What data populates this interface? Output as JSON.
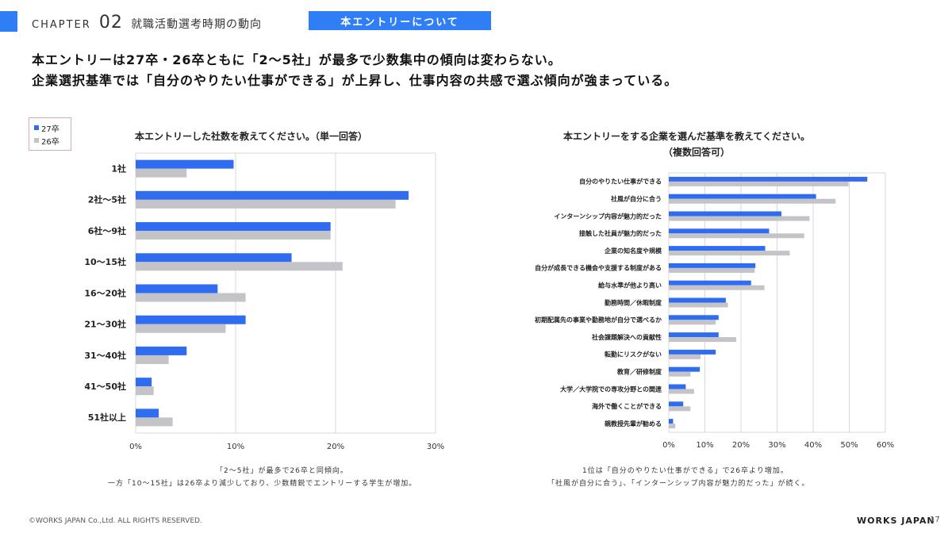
{
  "header": {
    "chapter_label": "CHAPTER",
    "chapter_num": "02",
    "chapter_title": "就職活動選考時期の動向",
    "tag": "本エントリーについて"
  },
  "headline": {
    "line1": "本エントリーは27卒・26卒ともに「2～5社」が最多で少数集中の傾向は変わらない。",
    "line2": "企業選択基準では「自分のやりたい仕事ができる」が上昇し、仕事内容の共感で選ぶ傾向が強まっている。"
  },
  "legend": {
    "items": [
      "27卒",
      "26卒"
    ]
  },
  "colors": {
    "series27": "#2f6cf0",
    "series26": "#c3c3c8",
    "accent": "#2f7ef5"
  },
  "chart_data": [
    {
      "type": "bar",
      "orientation": "horizontal",
      "title": "本エントリーした社数を教えてください。（単一回答）",
      "categories": [
        "1社",
        "2社～5社",
        "6社～9社",
        "10～15社",
        "16～20社",
        "21～30社",
        "31～40社",
        "41～50社",
        "51社以上"
      ],
      "series": [
        {
          "name": "27卒",
          "values": [
            9.8,
            27.3,
            19.5,
            15.6,
            8.2,
            11.0,
            5.1,
            1.6,
            2.3
          ]
        },
        {
          "name": "26卒",
          "values": [
            5.1,
            26.0,
            19.5,
            20.7,
            11.0,
            9.0,
            3.3,
            1.8,
            3.7
          ]
        }
      ],
      "xlim": [
        0,
        30
      ],
      "ticks": [
        0,
        10,
        20,
        30
      ],
      "tick_suffix": "%",
      "grid": true,
      "legend_position": "top-left",
      "note": [
        "「2～5社」が最多で26卒と同傾向。",
        "一方「10～15社」は26卒より減少しており、少数精鋭でエントリーする学生が増加。"
      ]
    },
    {
      "type": "bar",
      "orientation": "horizontal",
      "title": "本エントリーをする企業を選んだ基準を教えてください。",
      "subtitle": "（複数回答可）",
      "categories": [
        "自分のやりたい仕事ができる",
        "社風が自分に合う",
        "インターンシップ内容が魅力的だった",
        "接触した社員が魅力的だった",
        "企業の知名度や規模",
        "自分が成長できる機会や支援する制度がある",
        "給与水準が他より高い",
        "勤務時間／休暇制度",
        "初期配属先の事業や勤務地が自分で選べるか",
        "社会課題解決への貢献性",
        "転勤にリスクがない",
        "教育／研修制度",
        "大学／大学院での専攻分野との関連",
        "海外で働くことができる",
        "親教授先輩が勧める"
      ],
      "series": [
        {
          "name": "27卒",
          "values": [
            55.0,
            40.8,
            31.2,
            27.8,
            26.7,
            24.0,
            22.8,
            15.8,
            13.8,
            13.8,
            13.0,
            8.6,
            4.7,
            4.0,
            1.2
          ]
        },
        {
          "name": "26卒",
          "values": [
            49.8,
            46.2,
            39.0,
            37.5,
            33.5,
            23.8,
            26.5,
            16.4,
            13.0,
            18.7,
            8.8,
            6.0,
            7.0,
            6.0,
            1.8
          ]
        }
      ],
      "xlim": [
        0,
        60
      ],
      "ticks": [
        0,
        10,
        20,
        30,
        40,
        50,
        60
      ],
      "tick_suffix": "%",
      "grid": true,
      "note": [
        "1位は「自分のやりたい仕事ができる」で26卒より増加。",
        "「社風が自分に合う」、「インターンシップ内容が魅力的だった」が続く。"
      ]
    }
  ],
  "footer": {
    "copyright": "©WORKS JAPAN Co.,Ltd. ALL RIGHTS RESERVED.",
    "brand": "WORKS JAPAN",
    "page": "17"
  }
}
